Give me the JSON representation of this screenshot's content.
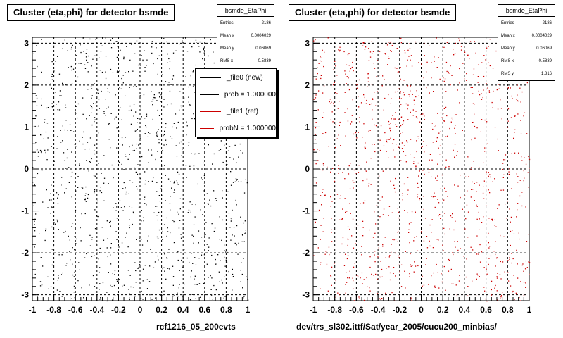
{
  "chart_data": [
    {
      "type": "scatter",
      "title": "Cluster (eta,phi) for detector bsmde",
      "xlim": [
        -1,
        1
      ],
      "ylim": [
        -3.14,
        3.14
      ],
      "x_ticks": [
        "-1",
        "-0.8",
        "-0.6",
        "-0.4",
        "-0.2",
        "0",
        "0.2",
        "0.4",
        "0.6",
        "0.8",
        "1"
      ],
      "y_ticks": [
        "3",
        "2",
        "1",
        "0",
        "-1",
        "-2",
        "-3"
      ],
      "grid": true,
      "marker_color": "#000000",
      "caption": "rcf1216_05_200evts",
      "stats": {
        "name": "bsmde_EtaPhi",
        "rows": [
          {
            "label": "Entries",
            "value": "2186"
          },
          {
            "label": "Mean x",
            "value": "0.0004029"
          },
          {
            "label": "Mean y",
            "value": "0.06069"
          },
          {
            "label": "RMS x",
            "value": "0.5839"
          }
        ]
      },
      "legend": {
        "placement": "top-right",
        "entries": [
          {
            "label": "_file0 (new)",
            "color": "#000000"
          },
          {
            "label": "prob = 1.000000",
            "color": "#000000"
          },
          {
            "label": "_file1 (ref)",
            "color": "#cc0000"
          },
          {
            "label": "probN = 1.000000",
            "color": "#cc0000"
          }
        ]
      }
    },
    {
      "type": "scatter",
      "title": "Cluster (eta,phi) for detector bsmde",
      "xlim": [
        -1,
        1
      ],
      "ylim": [
        -3.14,
        3.14
      ],
      "x_ticks": [
        "-1",
        "-0.8",
        "-0.6",
        "-0.4",
        "-0.2",
        "0",
        "0.2",
        "0.4",
        "0.6",
        "0.8",
        "1"
      ],
      "y_ticks": [
        "3",
        "2",
        "1",
        "0",
        "-1",
        "-2",
        "-3"
      ],
      "grid": true,
      "marker_color": "#cc0000",
      "caption": "dev/trs_sl302.ittf/Sat/year_2005/cucu200_minbias/",
      "stats": {
        "name": "bsmde_EtaPhi",
        "rows": [
          {
            "label": "Entries",
            "value": "2186"
          },
          {
            "label": "Mean x",
            "value": "0.0004029"
          },
          {
            "label": "Mean y",
            "value": "0.06069"
          },
          {
            "label": "RMS x",
            "value": "0.5839"
          },
          {
            "label": "RMS y",
            "value": "1.816"
          }
        ]
      }
    }
  ]
}
